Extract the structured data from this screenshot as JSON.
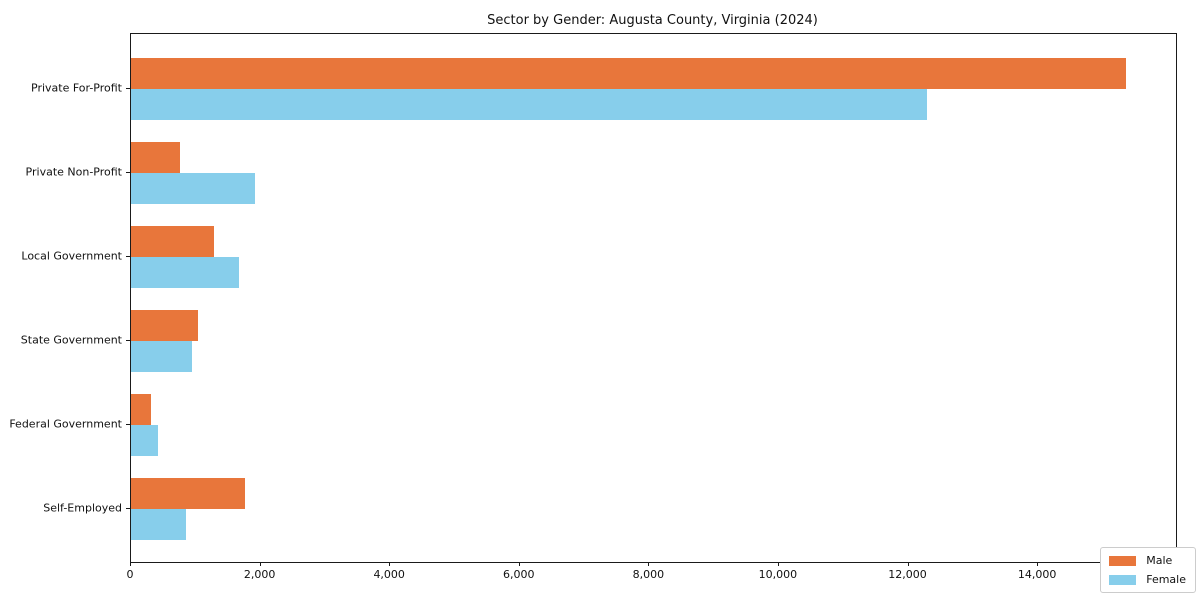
{
  "chart_data": {
    "type": "bar",
    "orientation": "horizontal",
    "title": "Sector by Gender: Augusta County, Virginia (2024)",
    "categories": [
      "Private For-Profit",
      "Private Non-Profit",
      "Local Government",
      "State Government",
      "Federal Government",
      "Self-Employed"
    ],
    "series": [
      {
        "name": "Male",
        "color": "#e8763b",
        "values": [
          15360,
          750,
          1275,
          1040,
          310,
          1755
        ]
      },
      {
        "name": "Female",
        "color": "#87ceeb",
        "values": [
          12290,
          1920,
          1670,
          945,
          420,
          850
        ]
      }
    ],
    "xlabel": "",
    "ylabel": "",
    "xlim": [
      0,
      16128
    ],
    "x_ticks": [
      0,
      2000,
      4000,
      6000,
      8000,
      10000,
      12000,
      14000,
      16000
    ],
    "x_tick_labels": [
      "0",
      "2,000",
      "4,000",
      "6,000",
      "8,000",
      "10,000",
      "12,000",
      "14,000",
      "16,000"
    ],
    "grid": false,
    "legend_position": "lower right",
    "axis_color": "#1a1a1a",
    "background_color": "#ffffff"
  }
}
